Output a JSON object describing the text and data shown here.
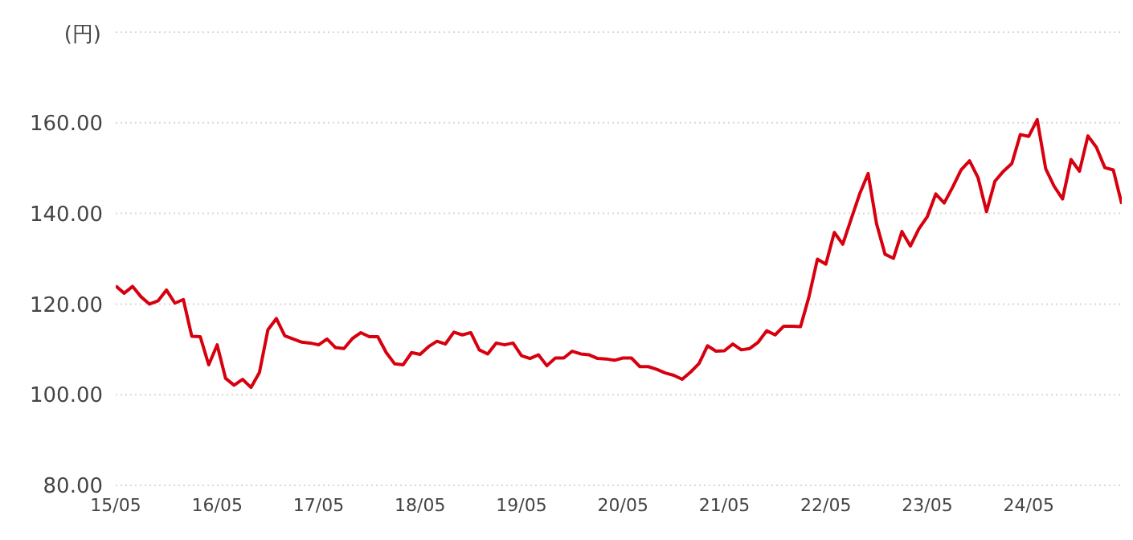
{
  "chart_data": {
    "type": "line",
    "ylabel": "(円)",
    "categories": [
      "15/05",
      null,
      null,
      null,
      null,
      null,
      null,
      null,
      null,
      null,
      null,
      null,
      "16/05",
      null,
      null,
      null,
      null,
      null,
      null,
      null,
      null,
      null,
      null,
      null,
      "17/05",
      null,
      null,
      null,
      null,
      null,
      null,
      null,
      null,
      null,
      null,
      null,
      "18/05",
      null,
      null,
      null,
      null,
      null,
      null,
      null,
      null,
      null,
      null,
      null,
      "19/05",
      null,
      null,
      null,
      null,
      null,
      null,
      null,
      null,
      null,
      null,
      null,
      "20/05",
      null,
      null,
      null,
      null,
      null,
      null,
      null,
      null,
      null,
      null,
      null,
      "21/05",
      null,
      null,
      null,
      null,
      null,
      null,
      null,
      null,
      null,
      null,
      null,
      "22/05",
      null,
      null,
      null,
      null,
      null,
      null,
      null,
      null,
      null,
      null,
      null,
      "23/05",
      null,
      null,
      null,
      null,
      null,
      null,
      null,
      null,
      null,
      null,
      null,
      "24/05",
      null,
      null,
      null,
      null,
      null,
      null,
      null,
      null,
      null,
      null,
      null
    ],
    "values": [
      124.0,
      122.4,
      123.9,
      121.6,
      120.0,
      120.7,
      123.1,
      120.2,
      121.0,
      112.9,
      112.8,
      106.6,
      111.0,
      103.6,
      102.1,
      103.4,
      101.6,
      104.9,
      114.3,
      116.8,
      113.0,
      112.3,
      111.6,
      111.4,
      111.0,
      112.3,
      110.4,
      110.2,
      112.4,
      113.7,
      112.8,
      112.8,
      109.3,
      106.8,
      106.6,
      109.3,
      108.9,
      110.6,
      111.8,
      111.2,
      113.8,
      113.2,
      113.7,
      109.9,
      109.0,
      111.4,
      111.0,
      111.4,
      108.6,
      108.0,
      108.8,
      106.4,
      108.1,
      108.1,
      109.6,
      109.0,
      108.8,
      108.0,
      107.9,
      107.6,
      108.1,
      108.1,
      106.2,
      106.2,
      105.6,
      104.8,
      104.3,
      103.4,
      105.0,
      106.9,
      110.8,
      109.6,
      109.7,
      111.2,
      109.9,
      110.2,
      111.6,
      114.1,
      113.2,
      115.1,
      115.1,
      115.0,
      121.6,
      129.9,
      128.8,
      135.8,
      133.2,
      138.8,
      144.3,
      148.8,
      137.7,
      131.0,
      130.1,
      136.0,
      132.8,
      136.6,
      139.3,
      144.3,
      142.3,
      145.8,
      149.6,
      151.6,
      147.9,
      140.4,
      147.1,
      149.3,
      151.0,
      157.4,
      157.0,
      160.7,
      149.9,
      146.0,
      143.2,
      151.9,
      149.3,
      157.1,
      154.6,
      150.1,
      149.6,
      142.1
    ],
    "color": "#d7000f",
    "ylim": [
      80,
      180
    ],
    "yticks": [
      {
        "value": 80,
        "label": "80.00"
      },
      {
        "value": 100,
        "label": "100.00"
      },
      {
        "value": 120,
        "label": "120.00"
      },
      {
        "value": 140,
        "label": "140.00"
      },
      {
        "value": 160,
        "label": "160.00"
      },
      {
        "value": 180,
        "label": null
      }
    ],
    "grid": "y"
  }
}
